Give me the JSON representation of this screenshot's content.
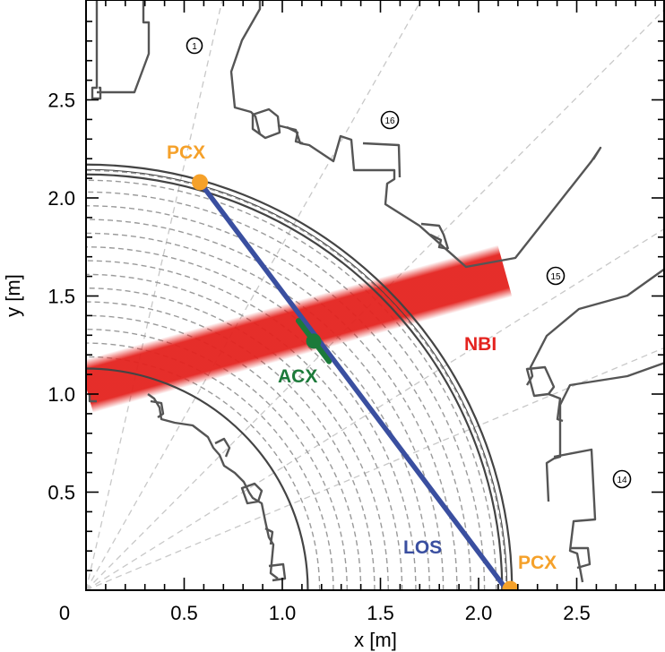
{
  "figure": {
    "x_axis_label": "x [m]",
    "y_axis_label": "y [m]",
    "x_ticks": [
      "0",
      "0.5",
      "1.0",
      "1.5",
      "2.0",
      "2.5"
    ],
    "y_ticks": [
      "0.5",
      "1.0",
      "1.5",
      "2.0",
      "2.5"
    ],
    "xlim": [
      0,
      2.95
    ],
    "ylim": [
      0,
      2.95
    ]
  },
  "annotations": {
    "pcx_top": "PCX",
    "pcx_bottom": "PCX",
    "acx": "ACX",
    "nbi": "NBI",
    "los": "LOS"
  },
  "ports": {
    "p1": "1",
    "p16": "16",
    "p15": "15",
    "p14": "14"
  },
  "colors": {
    "los": "#3a4fa0",
    "pcx": "#f5a12a",
    "acx": "#1c7a3a",
    "nbi": "#e4231f",
    "flux_surface": "#9a9a9a",
    "wall": "#4a4a4a"
  },
  "geometry_data": {
    "outer_wall_radius_m": 2.17,
    "inner_wall_radius_m": 1.13,
    "flux_surface_radii_m": [
      1.13,
      1.19,
      1.26,
      1.33,
      1.4,
      1.47,
      1.54,
      1.61,
      1.68,
      1.75,
      1.82,
      1.89,
      1.96,
      2.03,
      2.09,
      2.14
    ],
    "los_start_m": [
      0.58,
      2.08
    ],
    "los_end_m": [
      2.13,
      0.02
    ],
    "acx_point_m": [
      1.16,
      1.27
    ]
  }
}
